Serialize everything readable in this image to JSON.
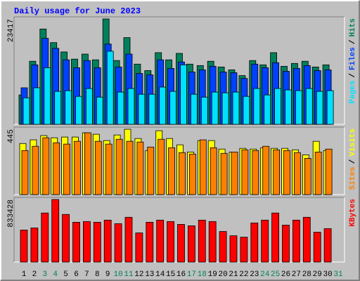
{
  "chart_data": [
    {
      "type": "bar",
      "title": "Daily usage for June 2023",
      "categories": [
        "1",
        "2",
        "3",
        "4",
        "5",
        "6",
        "7",
        "8",
        "9",
        "10",
        "11",
        "12",
        "13",
        "14",
        "15",
        "16",
        "17",
        "18",
        "19",
        "20",
        "21",
        "22",
        "23",
        "24",
        "25",
        "26",
        "27",
        "28",
        "29",
        "30",
        "31"
      ],
      "category_colors": [
        "#000000",
        "#000000",
        "#00805c",
        "#00805c",
        "#000000",
        "#000000",
        "#000000",
        "#000000",
        "#000000",
        "#00805c",
        "#00805c",
        "#000000",
        "#000000",
        "#000000",
        "#000000",
        "#000000",
        "#00805c",
        "#00805c",
        "#000000",
        "#000000",
        "#000000",
        "#000000",
        "#000000",
        "#00805c",
        "#00805c",
        "#000000",
        "#000000",
        "#000000",
        "#000000",
        "#000000",
        "#00805c"
      ],
      "separator": "/",
      "series": [
        {
          "name": "Hits",
          "color": "#00805c",
          "values": [
            6531,
            14018,
            21187,
            18160,
            16089,
            14496,
            15611,
            14337,
            23417,
            14178,
            19275,
            13381,
            11948,
            15930,
            14337,
            15771,
            13381,
            13063,
            14018,
            12744,
            12107,
            10832,
            14178,
            13222,
            15930,
            12903,
            13540,
            14018,
            12744,
            13222,
            null
          ]
        },
        {
          "name": "Files",
          "color": "#0040ff",
          "values": [
            8124,
            13221,
            19116,
            16886,
            14337,
            12585,
            14178,
            12585,
            17842,
            12744,
            15611,
            11311,
            10992,
            14337,
            12425,
            13859,
            11629,
            12107,
            12903,
            11629,
            11470,
            10195,
            13381,
            12585,
            13700,
            11788,
            12425,
            13062,
            11948,
            12107,
            null
          ]
        },
        {
          "name": "Pages",
          "color": "#00e0ff",
          "values": [
            5894,
            8124,
            12585,
            7328,
            7487,
            6213,
            7965,
            6053,
            16249,
            7168,
            7965,
            6690,
            6690,
            8284,
            7328,
            13221,
            6690,
            6053,
            7168,
            7009,
            7168,
            6213,
            7965,
            6531,
            7965,
            7646,
            7487,
            7965,
            7328,
            7487,
            null
          ]
        }
      ],
      "ylim": [
        0,
        23417
      ],
      "yticks": [
        23417
      ]
    },
    {
      "type": "bar",
      "series": [
        {
          "name": "Visits",
          "color": "#ffff00",
          "values": [
            348,
            373,
            402,
            387,
            392,
            392,
            421,
            411,
            368,
            406,
            445,
            382,
            300,
            435,
            382,
            339,
            290,
            368,
            368,
            310,
            290,
            315,
            310,
            319,
            315,
            315,
            305,
            271,
            363,
            300,
            null
          ]
        },
        {
          "name": "Sites",
          "color": "#ff8000",
          "values": [
            300,
            329,
            387,
            353,
            344,
            363,
            421,
            363,
            344,
            377,
            363,
            358,
            324,
            377,
            319,
            286,
            276,
            373,
            319,
            281,
            290,
            305,
            300,
            329,
            305,
            300,
            286,
            247,
            290,
            310,
            null
          ]
        }
      ],
      "ylim": [
        0,
        445
      ],
      "yticks": [
        445
      ]
    },
    {
      "type": "bar",
      "series": [
        {
          "name": "KBytes",
          "color": "#ff0000",
          "values": [
            426195,
            454608,
            653499,
            833428,
            634557,
            530376,
            539847,
            530376,
            558789,
            511434,
            596673,
            388311,
            530376,
            558789,
            539847,
            501963,
            483021,
            558789,
            539847,
            407253,
            350427,
            331485,
            520905,
            558789,
            653499,
            492492,
            558789,
            596673,
            397782,
            445137,
            null
          ]
        }
      ],
      "ylim": [
        0,
        833428
      ],
      "yticks": [
        833428
      ]
    }
  ]
}
